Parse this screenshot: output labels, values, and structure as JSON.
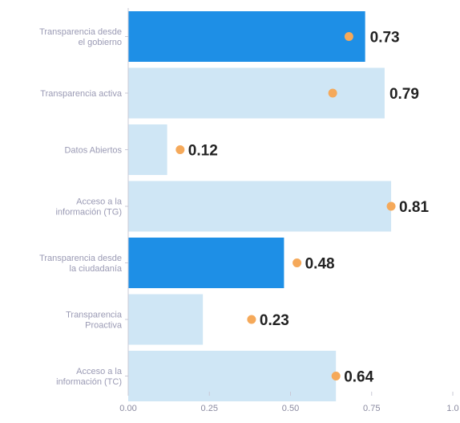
{
  "chart_data": {
    "type": "bar",
    "orientation": "horizontal",
    "categories": [
      "Transparencia desde\nel gobierno",
      "Transparencia activa",
      "Datos Abiertos",
      "Acceso a la\ninformación (TG)",
      "Transparencia desde\nla ciudadanía",
      "Transparencia\nProactiva",
      "Acceso a la\ninformación (TC)"
    ],
    "values": [
      0.73,
      0.79,
      0.12,
      0.81,
      0.48,
      0.23,
      0.64
    ],
    "value_labels": [
      "0.73",
      "0.79",
      "0.12",
      "0.81",
      "0.48",
      "0.23",
      "0.64"
    ],
    "markers": [
      0.68,
      0.63,
      0.16,
      0.81,
      0.52,
      0.38,
      0.64
    ],
    "bar_styles": [
      "dark",
      "light",
      "light",
      "light",
      "dark",
      "light",
      "light"
    ],
    "xlim": [
      0,
      1.0
    ],
    "xticks": [
      0,
      0.25,
      0.5,
      0.75,
      1.0
    ],
    "xtick_labels": [
      "0.00",
      "0.25",
      "0.50",
      "0.75",
      "1.0"
    ],
    "title": "",
    "xlabel": "",
    "ylabel": "",
    "grid": false,
    "colors": {
      "dark": "#1e8fe6",
      "light": "#cfe6f5",
      "marker": "#f5a95a",
      "axis": "#c9c9d6"
    }
  }
}
